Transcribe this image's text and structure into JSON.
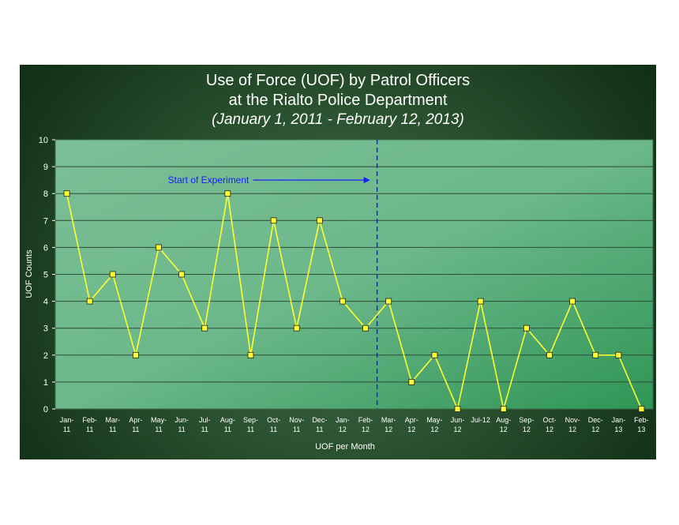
{
  "chart_data": {
    "type": "line",
    "title": "Use of Force (UOF) by Patrol Officers",
    "title_line2": "at the Rialto Police Department",
    "subtitle": "(January 1, 2011 - February 12, 2013)",
    "xlabel": "UOF per Month",
    "ylabel": "UOF Counts",
    "ylim": [
      0,
      10
    ],
    "yticks": [
      0,
      1,
      2,
      3,
      4,
      5,
      6,
      7,
      8,
      9,
      10
    ],
    "grid": true,
    "categories": [
      [
        "Jan-",
        "11"
      ],
      [
        "Feb-",
        "11"
      ],
      [
        "Mar-",
        "11"
      ],
      [
        "Apr-",
        "11"
      ],
      [
        "May-",
        "11"
      ],
      [
        "Jun-",
        "11"
      ],
      [
        "Jul-",
        "11"
      ],
      [
        "Aug-",
        "11"
      ],
      [
        "Sep-",
        "11"
      ],
      [
        "Oct-",
        "11"
      ],
      [
        "Nov-",
        "11"
      ],
      [
        "Dec-",
        "11"
      ],
      [
        "Jan-",
        "12"
      ],
      [
        "Feb-",
        "12"
      ],
      [
        "Mar-",
        "12"
      ],
      [
        "Apr-",
        "12"
      ],
      [
        "May-",
        "12"
      ],
      [
        "Jun-",
        "12"
      ],
      [
        "Jul-12",
        ""
      ],
      [
        "Aug-",
        "12"
      ],
      [
        "Sep-",
        "12"
      ],
      [
        "Oct-",
        "12"
      ],
      [
        "Nov-",
        "12"
      ],
      [
        "Dec-",
        "12"
      ],
      [
        "Jan-",
        "13"
      ],
      [
        "Feb-",
        "13"
      ]
    ],
    "values": [
      8,
      4,
      5,
      2,
      6,
      5,
      3,
      8,
      2,
      7,
      3,
      7,
      4,
      3,
      4,
      1,
      2,
      0,
      4,
      0,
      3,
      2,
      4,
      2,
      2,
      0
    ],
    "line_color": "#ffff33",
    "marker_color": "#ffff33",
    "annotation": {
      "text": "Start of Experiment",
      "divider_after_index": 13,
      "y_value": 8.5,
      "color": "#1a1aff"
    }
  }
}
